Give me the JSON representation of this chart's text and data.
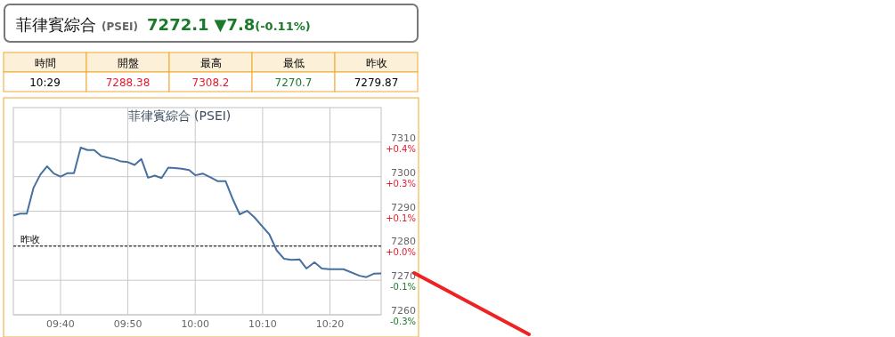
{
  "chart_data": [
    {
      "type": "other",
      "title": "菲律賓綜合",
      "subtitle": "(PSEI)",
      "annotations": [
        "7272.1",
        "▼7.8",
        "(-0.11%)"
      ],
      "categories": [
        "時間",
        "開盤",
        "最高",
        "最低",
        "昨收"
      ],
      "value_labels": [
        "10:29",
        "7288.38",
        "7308.2",
        "7270.7",
        "7279.87"
      ]
    },
    {
      "type": "line",
      "title": "菲律賓綜合 (PSEI)",
      "x": [
        9.55,
        9.5667,
        9.5833,
        9.6,
        9.6167,
        9.6333,
        9.65,
        9.6667,
        9.6833,
        9.7,
        9.7167,
        9.7333,
        9.75,
        9.7667,
        9.7833,
        9.8,
        9.8167,
        9.8333,
        9.85,
        9.8667,
        9.8833,
        9.9,
        9.9167,
        9.9333,
        9.95,
        9.9667,
        9.985,
        10,
        10.0183,
        10.0375,
        10.055,
        10.075,
        10.0917,
        10.11,
        10.1283,
        10.1467,
        10.165,
        10.1833,
        10.2017,
        10.22,
        10.2383,
        10.2583,
        10.275,
        10.295,
        10.3133,
        10.3317,
        10.3667,
        10.4067,
        10.4233,
        10.4417,
        10.46
      ],
      "series": [
        {
          "color": "#46709f",
          "values": [
            7288.7,
            7289.3,
            7289.3,
            7296.8,
            7300.6,
            7303.0,
            7300.9,
            7300.0,
            7301.0,
            7301.0,
            7308.4,
            7307.7,
            7307.7,
            7306.0,
            7305.5,
            7305.1,
            7304.4,
            7304.2,
            7303.4,
            7305.1,
            7299.7,
            7300.3,
            7299.6,
            7302.6,
            7302.5,
            7302.3,
            7301.9,
            7300.4,
            7300.9,
            7299.8,
            7298.7,
            7298.7,
            7293.8,
            7289.1,
            7290.1,
            7288.2,
            7285.7,
            7283.3,
            7278.6,
            7276.2,
            7275.9,
            7276.0,
            7273.4,
            7275.2,
            7273.4,
            7273.2,
            7273.2,
            7271.3,
            7270.9,
            7271.9,
            7272.0
          ]
        }
      ],
      "xlim": [
        9.55,
        10.46
      ],
      "xticks": [
        {
          "value": 9.6667,
          "label": "09:40"
        },
        {
          "value": 9.8333,
          "label": "09:50"
        },
        {
          "value": 10,
          "label": "10:00"
        },
        {
          "value": 10.1667,
          "label": "10:10"
        },
        {
          "value": 10.3333,
          "label": "10:20"
        }
      ],
      "ylim": [
        7260,
        7320
      ],
      "yticks": [
        7260,
        7270,
        7280,
        7290,
        7300,
        7310
      ],
      "annotations": [
        "-0.3%",
        "-0.1%",
        "+0.0%",
        "+0.1%",
        "+0.3%",
        "+0.4%"
      ],
      "ref_lines": [
        {
          "axis": "y",
          "value": 7279.87,
          "label": "昨收",
          "color": "#000000",
          "line_style": "dashed"
        }
      ],
      "grid": true,
      "marker": "none",
      "line_style": "solid"
    }
  ]
}
